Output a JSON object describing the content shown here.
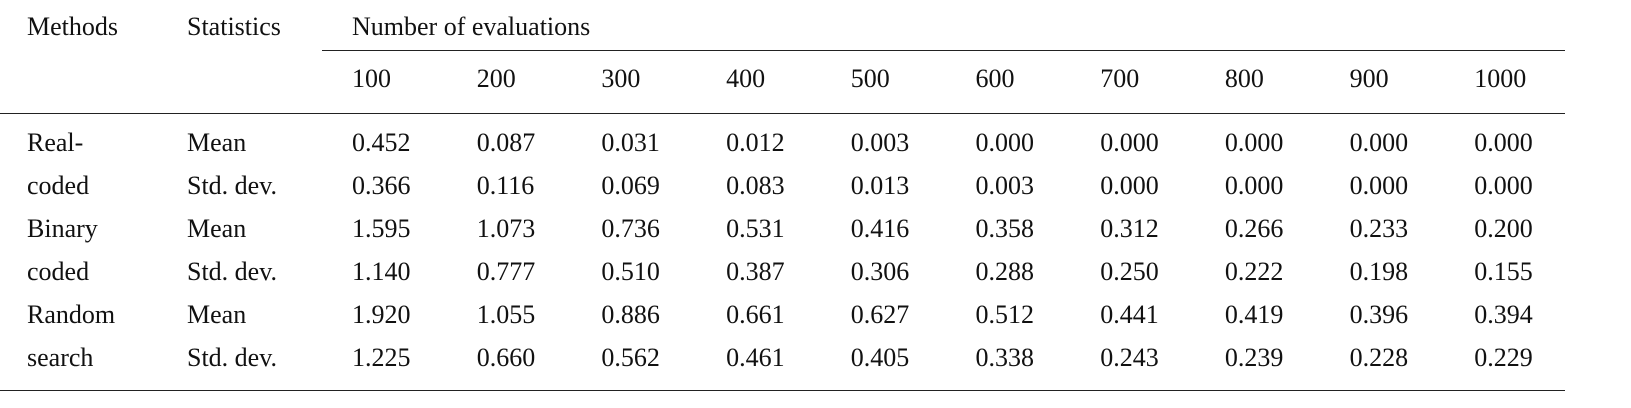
{
  "table": {
    "header": [
      "Methods",
      "Statistics",
      "Number of evaluations"
    ],
    "subheader": [
      "100",
      "200",
      "300",
      "400",
      "500",
      "600",
      "700",
      "800",
      "900",
      "1000"
    ],
    "rows": [
      [
        "Real-",
        "Mean",
        "0.452",
        "0.087",
        "0.031",
        "0.012",
        "0.003",
        "0.000",
        "0.000",
        "0.000",
        "0.000",
        "0.000"
      ],
      [
        "coded",
        "Std. dev.",
        "0.366",
        "0.116",
        "0.069",
        "0.083",
        "0.013",
        "0.003",
        "0.000",
        "0.000",
        "0.000",
        "0.000"
      ],
      [
        "Binary",
        "Mean",
        "1.595",
        "1.073",
        "0.736",
        "0.531",
        "0.416",
        "0.358",
        "0.312",
        "0.266",
        "0.233",
        "0.200"
      ],
      [
        "coded",
        "Std. dev.",
        "1.140",
        "0.777",
        "0.510",
        "0.387",
        "0.306",
        "0.288",
        "0.250",
        "0.222",
        "0.198",
        "0.155"
      ],
      [
        "Random",
        "Mean",
        "1.920",
        "1.055",
        "0.886",
        "0.661",
        "0.627",
        "0.512",
        "0.441",
        "0.419",
        "0.396",
        "0.394"
      ],
      [
        "search",
        "Std. dev.",
        "1.225",
        "0.660",
        "0.562",
        "0.461",
        "0.405",
        "0.338",
        "0.243",
        "0.239",
        "0.228",
        "0.229"
      ]
    ]
  }
}
